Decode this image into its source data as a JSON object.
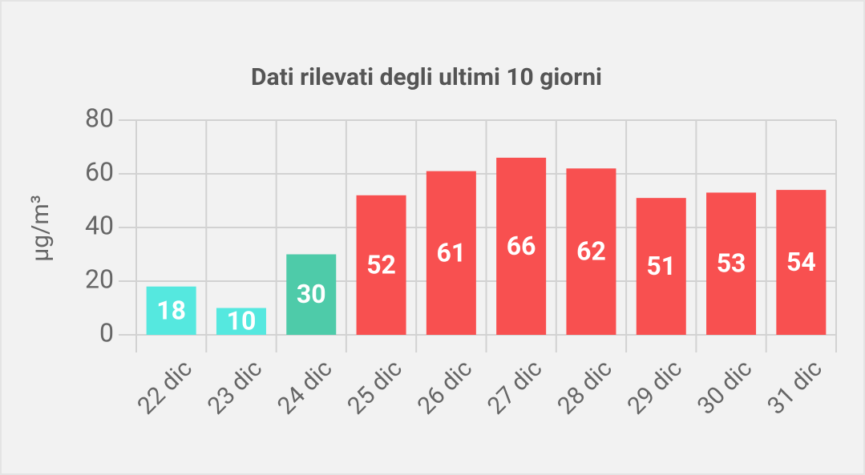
{
  "chart_data": {
    "type": "bar",
    "title": "Dati rilevati degli ultimi 10 giorni",
    "y_label": "µg/m³",
    "categories": [
      "22 dic",
      "23 dic",
      "24 dic",
      "25 dic",
      "26 dic",
      "27 dic",
      "28 dic",
      "29 dic",
      "30 dic",
      "31 dic"
    ],
    "values": [
      18,
      10,
      30,
      52,
      61,
      66,
      62,
      51,
      53,
      54
    ],
    "colors": [
      "#55e8df",
      "#55e8df",
      "#4ecba9",
      "#f85050",
      "#f85050",
      "#f85050",
      "#f85050",
      "#f85050",
      "#f85050",
      "#f85050"
    ],
    "ylim": [
      0,
      80
    ],
    "yticks": [
      0,
      20,
      40,
      60,
      80
    ],
    "grid": true
  }
}
